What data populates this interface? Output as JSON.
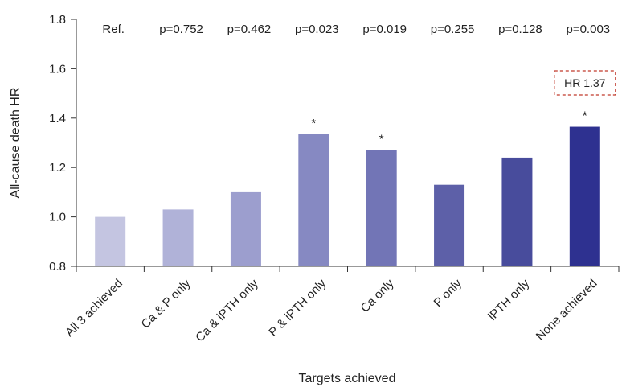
{
  "chart_data": {
    "type": "bar",
    "xlabel": "Targets achieved",
    "ylabel": "All-cause death HR",
    "ylim": [
      0.8,
      1.8
    ],
    "yticks": [
      "0.8",
      "1.0",
      "1.2",
      "1.4",
      "1.6",
      "1.8"
    ],
    "categories": [
      "All 3 achieved",
      "Ca & P only",
      "Ca & iPTH only",
      "P & iPTH only",
      "Ca only",
      "P only",
      "iPTH only",
      "None achieved"
    ],
    "values": [
      1.0,
      1.03,
      1.1,
      1.335,
      1.27,
      1.13,
      1.24,
      1.365
    ],
    "p_values": [
      "Ref.",
      "p=0.752",
      "p=0.462",
      "p=0.023",
      "p=0.019",
      "p=0.255",
      "p=0.128",
      "p=0.003"
    ],
    "significant": [
      false,
      false,
      false,
      true,
      true,
      false,
      false,
      true
    ],
    "significance_marker": "*",
    "bar_colors": [
      "#c4c5e1",
      "#b0b2d8",
      "#9c9ece",
      "#8689c2",
      "#7275b6",
      "#5d60a8",
      "#484c9c",
      "#2e3190"
    ],
    "annotation": {
      "text": "HR 1.37",
      "category_index": 7,
      "border_color": "#c0392b"
    },
    "grid": false
  }
}
